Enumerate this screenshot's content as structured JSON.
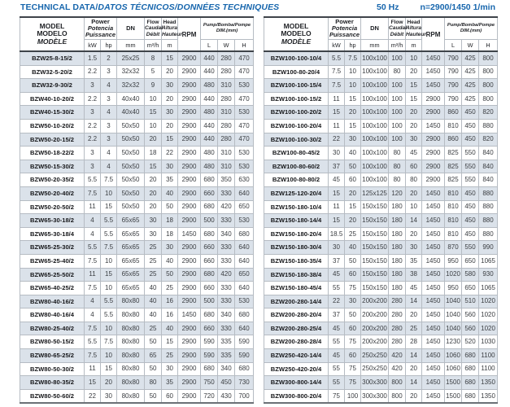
{
  "title": {
    "en": "TECHNICAL DATA/",
    "intl": "DATOS TÉCNICOS/DONNÉES TECHNIQUES"
  },
  "freq_note": {
    "hz": "50 Hz",
    "speed": "n=2900/1450 1/min"
  },
  "colors": {
    "accent_blue": "#1766ad",
    "row_shade": "#dbe2ea",
    "border_dark": "#3f444a",
    "grid_gray": "#b6bcc3"
  },
  "header": {
    "model": [
      "MODEL",
      "MODELO",
      "MODÈLE"
    ],
    "power": [
      "Power",
      "Potencia",
      "Puissance"
    ],
    "dn": "DN",
    "flow": [
      "Flow",
      "Caudal",
      "Débit"
    ],
    "head": [
      "Head",
      "Altura",
      "Hauteur"
    ],
    "rpm": "RPM",
    "dim": [
      "Pump/Bomba/Pompe",
      "DIM.(mm)"
    ],
    "units": {
      "kw": "kW",
      "hp": "hp",
      "mm": "mm",
      "flow": "m³/h",
      "m": "m",
      "l": "L",
      "w": "W",
      "h": "H"
    }
  },
  "tables": {
    "left": {
      "rows": [
        [
          "BZW25-8-15/2",
          "1.5",
          "2",
          "25x25",
          "8",
          "15",
          "2900",
          "440",
          "280",
          "470"
        ],
        [
          "BZW32-5-20/2",
          "2.2",
          "3",
          "32x32",
          "5",
          "20",
          "2900",
          "440",
          "280",
          "470"
        ],
        [
          "BZW32-9-30/2",
          "3",
          "4",
          "32x32",
          "9",
          "30",
          "2900",
          "480",
          "310",
          "530"
        ],
        [
          "BZW40-10-20/2",
          "2.2",
          "3",
          "40x40",
          "10",
          "20",
          "2900",
          "440",
          "280",
          "470"
        ],
        [
          "BZW40-15-30/2",
          "3",
          "4",
          "40x40",
          "15",
          "30",
          "2900",
          "480",
          "310",
          "530"
        ],
        [
          "BZW50-10-20/2",
          "2.2",
          "3",
          "50x50",
          "10",
          "20",
          "2900",
          "440",
          "280",
          "470"
        ],
        [
          "BZW50-20-15/2",
          "2.2",
          "3",
          "50x50",
          "20",
          "15",
          "2900",
          "440",
          "280",
          "470"
        ],
        [
          "BZW50-18-22/2",
          "3",
          "4",
          "50x50",
          "18",
          "22",
          "2900",
          "480",
          "310",
          "530"
        ],
        [
          "BZW50-15-30/2",
          "3",
          "4",
          "50x50",
          "15",
          "30",
          "2900",
          "480",
          "310",
          "530"
        ],
        [
          "BZW50-20-35/2",
          "5.5",
          "7.5",
          "50x50",
          "20",
          "35",
          "2900",
          "680",
          "350",
          "630"
        ],
        [
          "BZW50-20-40/2",
          "7.5",
          "10",
          "50x50",
          "20",
          "40",
          "2900",
          "660",
          "330",
          "640"
        ],
        [
          "BZW50-20-50/2",
          "11",
          "15",
          "50x50",
          "20",
          "50",
          "2900",
          "680",
          "420",
          "650"
        ],
        [
          "BZW65-30-18/2",
          "4",
          "5.5",
          "65x65",
          "30",
          "18",
          "2900",
          "500",
          "330",
          "530"
        ],
        [
          "BZW65-30-18/4",
          "4",
          "5.5",
          "65x65",
          "30",
          "18",
          "1450",
          "680",
          "340",
          "680"
        ],
        [
          "BZW65-25-30/2",
          "5.5",
          "7.5",
          "65x65",
          "25",
          "30",
          "2900",
          "660",
          "330",
          "640"
        ],
        [
          "BZW65-25-40/2",
          "7.5",
          "10",
          "65x65",
          "25",
          "40",
          "2900",
          "660",
          "330",
          "640"
        ],
        [
          "BZW65-25-50/2",
          "11",
          "15",
          "65x65",
          "25",
          "50",
          "2900",
          "680",
          "420",
          "650"
        ],
        [
          "BZW65-40-25/2",
          "7.5",
          "10",
          "65x65",
          "40",
          "25",
          "2900",
          "660",
          "330",
          "640"
        ],
        [
          "BZW80-40-16/2",
          "4",
          "5.5",
          "80x80",
          "40",
          "16",
          "2900",
          "500",
          "330",
          "530"
        ],
        [
          "BZW80-40-16/4",
          "4",
          "5.5",
          "80x80",
          "40",
          "16",
          "1450",
          "680",
          "340",
          "680"
        ],
        [
          "BZW80-25-40/2",
          "7.5",
          "10",
          "80x80",
          "25",
          "40",
          "2900",
          "660",
          "330",
          "640"
        ],
        [
          "BZW80-50-15/2",
          "5.5",
          "7.5",
          "80x80",
          "50",
          "15",
          "2900",
          "590",
          "335",
          "590"
        ],
        [
          "BZW80-65-25/2",
          "7.5",
          "10",
          "80x80",
          "65",
          "25",
          "2900",
          "590",
          "335",
          "590"
        ],
        [
          "BZW80-50-30/2",
          "11",
          "15",
          "80x80",
          "50",
          "30",
          "2900",
          "680",
          "340",
          "680"
        ],
        [
          "BZW80-80-35/2",
          "15",
          "20",
          "80x80",
          "80",
          "35",
          "2900",
          "750",
          "450",
          "730"
        ],
        [
          "BZW80-50-60/2",
          "22",
          "30",
          "80x80",
          "50",
          "60",
          "2900",
          "720",
          "430",
          "700"
        ]
      ]
    },
    "right": {
      "rows": [
        [
          "BZW100-100-10/4",
          "5.5",
          "7.5",
          "100x100",
          "100",
          "10",
          "1450",
          "790",
          "425",
          "800"
        ],
        [
          "BZW100-80-20/4",
          "7.5",
          "10",
          "100x100",
          "80",
          "20",
          "1450",
          "790",
          "425",
          "800"
        ],
        [
          "BZW100-100-15/4",
          "7.5",
          "10",
          "100x100",
          "100",
          "15",
          "1450",
          "790",
          "425",
          "800"
        ],
        [
          "BZW100-100-15/2",
          "11",
          "15",
          "100x100",
          "100",
          "15",
          "2900",
          "790",
          "425",
          "800"
        ],
        [
          "BZW100-100-20/2",
          "15",
          "20",
          "100x100",
          "100",
          "20",
          "2900",
          "860",
          "450",
          "820"
        ],
        [
          "BZW100-100-20/4",
          "11",
          "15",
          "100x100",
          "100",
          "20",
          "1450",
          "810",
          "450",
          "880"
        ],
        [
          "BZW100-100-30/2",
          "22",
          "30",
          "100x100",
          "100",
          "30",
          "2900",
          "860",
          "450",
          "820"
        ],
        [
          "BZW100-80-45/2",
          "30",
          "40",
          "100x100",
          "80",
          "45",
          "2900",
          "825",
          "550",
          "840"
        ],
        [
          "BZW100-80-60/2",
          "37",
          "50",
          "100x100",
          "80",
          "60",
          "2900",
          "825",
          "550",
          "840"
        ],
        [
          "BZW100-80-80/2",
          "45",
          "60",
          "100x100",
          "80",
          "80",
          "2900",
          "825",
          "550",
          "840"
        ],
        [
          "BZW125-120-20/4",
          "15",
          "20",
          "125x125",
          "120",
          "20",
          "1450",
          "810",
          "450",
          "880"
        ],
        [
          "BZW150-180-10/4",
          "11",
          "15",
          "150x150",
          "180",
          "10",
          "1450",
          "810",
          "450",
          "880"
        ],
        [
          "BZW150-180-14/4",
          "15",
          "20",
          "150x150",
          "180",
          "14",
          "1450",
          "810",
          "450",
          "880"
        ],
        [
          "BZW150-180-20/4",
          "18.5",
          "25",
          "150x150",
          "180",
          "20",
          "1450",
          "810",
          "450",
          "880"
        ],
        [
          "BZW150-180-30/4",
          "30",
          "40",
          "150x150",
          "180",
          "30",
          "1450",
          "870",
          "550",
          "990"
        ],
        [
          "BZW150-180-35/4",
          "37",
          "50",
          "150x150",
          "180",
          "35",
          "1450",
          "950",
          "650",
          "1065"
        ],
        [
          "BZW150-180-38/4",
          "45",
          "60",
          "150x150",
          "180",
          "38",
          "1450",
          "1020",
          "580",
          "930"
        ],
        [
          "BZW150-180-45/4",
          "55",
          "75",
          "150x150",
          "180",
          "45",
          "1450",
          "950",
          "650",
          "1065"
        ],
        [
          "BZW200-280-14/4",
          "22",
          "30",
          "200x200",
          "280",
          "14",
          "1450",
          "1040",
          "510",
          "1020"
        ],
        [
          "BZW200-280-20/4",
          "37",
          "50",
          "200x200",
          "280",
          "20",
          "1450",
          "1040",
          "560",
          "1020"
        ],
        [
          "BZW200-280-25/4",
          "45",
          "60",
          "200x200",
          "280",
          "25",
          "1450",
          "1040",
          "560",
          "1020"
        ],
        [
          "BZW200-280-28/4",
          "55",
          "75",
          "200x200",
          "280",
          "28",
          "1450",
          "1230",
          "520",
          "1030"
        ],
        [
          "BZW250-420-14/4",
          "45",
          "60",
          "250x250",
          "420",
          "14",
          "1450",
          "1060",
          "680",
          "1100"
        ],
        [
          "BZW250-420-20/4",
          "55",
          "75",
          "250x250",
          "420",
          "20",
          "1450",
          "1060",
          "680",
          "1100"
        ],
        [
          "BZW300-800-14/4",
          "55",
          "75",
          "300x300",
          "800",
          "14",
          "1450",
          "1500",
          "680",
          "1350"
        ],
        [
          "BZW300-800-20/4",
          "75",
          "100",
          "300x300",
          "800",
          "20",
          "1450",
          "1500",
          "680",
          "1350"
        ]
      ]
    }
  }
}
